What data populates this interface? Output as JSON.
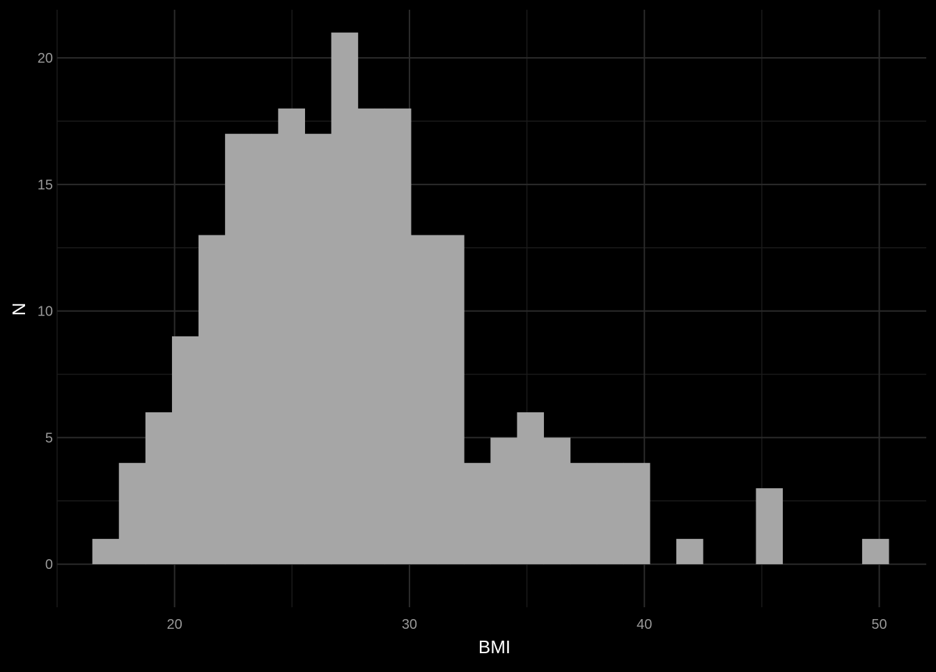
{
  "colors": {
    "background": "#000000",
    "grid_major": "#2b2b2b",
    "grid_minor": "#1a1a1a",
    "bar_fill": "#a6a6a6",
    "tick_text": "#999999",
    "axis_title_text": "#ffffff"
  },
  "chart_data": {
    "type": "bar",
    "subtype": "histogram",
    "title": "",
    "xlabel": "BMI",
    "ylabel": "N",
    "bin_width": 1.13,
    "xlim": [
      15,
      52
    ],
    "ylim": [
      -1.7,
      21.9
    ],
    "x_ticks": [
      20,
      30,
      40,
      50
    ],
    "x_tick_labels": [
      "20",
      "30",
      "40",
      "50"
    ],
    "x_minor_ticks": [
      15,
      25,
      35,
      45
    ],
    "y_ticks": [
      0,
      5,
      10,
      15,
      20
    ],
    "y_tick_labels": [
      "0",
      "5",
      "10",
      "15",
      "20"
    ],
    "y_minor_ticks": [
      2.5,
      7.5,
      12.5,
      17.5
    ],
    "grid": true,
    "legend": "none",
    "bins": [
      {
        "x_start": 16.5,
        "x_end": 17.63,
        "count": 1
      },
      {
        "x_start": 17.63,
        "x_end": 18.76,
        "count": 4
      },
      {
        "x_start": 18.76,
        "x_end": 19.89,
        "count": 6
      },
      {
        "x_start": 19.89,
        "x_end": 21.02,
        "count": 9
      },
      {
        "x_start": 21.02,
        "x_end": 22.15,
        "count": 13
      },
      {
        "x_start": 22.15,
        "x_end": 23.28,
        "count": 17
      },
      {
        "x_start": 23.28,
        "x_end": 24.41,
        "count": 17
      },
      {
        "x_start": 24.41,
        "x_end": 25.54,
        "count": 18
      },
      {
        "x_start": 25.54,
        "x_end": 26.67,
        "count": 17
      },
      {
        "x_start": 26.67,
        "x_end": 27.8,
        "count": 21
      },
      {
        "x_start": 27.8,
        "x_end": 28.93,
        "count": 18
      },
      {
        "x_start": 28.93,
        "x_end": 30.06,
        "count": 18
      },
      {
        "x_start": 30.06,
        "x_end": 31.19,
        "count": 13
      },
      {
        "x_start": 31.19,
        "x_end": 32.32,
        "count": 13
      },
      {
        "x_start": 32.32,
        "x_end": 33.45,
        "count": 4
      },
      {
        "x_start": 33.45,
        "x_end": 34.58,
        "count": 5
      },
      {
        "x_start": 34.58,
        "x_end": 35.71,
        "count": 6
      },
      {
        "x_start": 35.71,
        "x_end": 36.84,
        "count": 5
      },
      {
        "x_start": 36.84,
        "x_end": 37.97,
        "count": 4
      },
      {
        "x_start": 37.97,
        "x_end": 39.1,
        "count": 4
      },
      {
        "x_start": 39.1,
        "x_end": 40.23,
        "count": 4
      },
      {
        "x_start": 41.36,
        "x_end": 42.49,
        "count": 1
      },
      {
        "x_start": 44.75,
        "x_end": 45.88,
        "count": 3
      },
      {
        "x_start": 49.27,
        "x_end": 50.4,
        "count": 1
      }
    ]
  }
}
